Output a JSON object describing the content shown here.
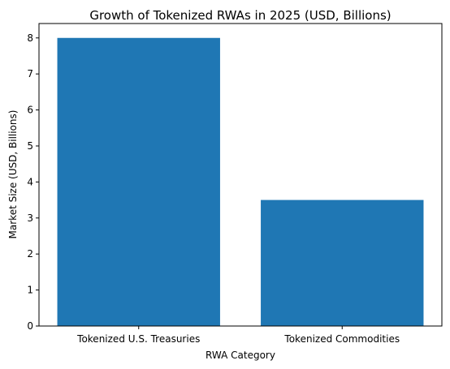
{
  "chart_data": {
    "type": "bar",
    "title": "Growth of Tokenized RWAs in 2025 (USD, Billions)",
    "xlabel": "RWA Category",
    "ylabel": "Market Size (USD, Billions)",
    "categories": [
      "Tokenized U.S. Treasuries",
      "Tokenized Commodities"
    ],
    "values": [
      8.0,
      3.5
    ],
    "ylim": [
      0,
      8.4
    ],
    "yticks": [
      "0",
      "1",
      "2",
      "3",
      "4",
      "5",
      "6",
      "7",
      "8"
    ],
    "bar_color": "#1f77b4",
    "grid": false,
    "legend": "none"
  }
}
